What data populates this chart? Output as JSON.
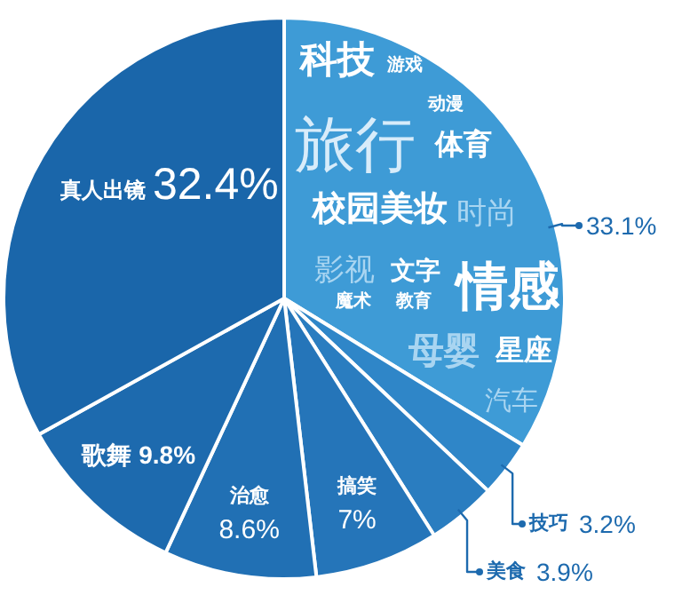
{
  "chart_data": {
    "type": "pie",
    "categories": [
      null,
      "技巧",
      "美食",
      "搞笑",
      "治愈",
      "歌舞",
      "真人出镜"
    ],
    "values": [
      33.1,
      3.2,
      3.9,
      7,
      8.6,
      9.8,
      32.4
    ],
    "value_labels": [
      "33.1%",
      "3.2%",
      "3.9%",
      "7%",
      "8.6%",
      "9.8%",
      "32.4%"
    ],
    "colors": [
      "#3e9bd6",
      "#2f86c8",
      "#2a7dc0",
      "#2575b9",
      "#2170b4",
      "#1d6aae",
      "#1a66aa"
    ],
    "annotations": [
      "科技",
      "游戏",
      "动漫",
      "旅行",
      "体育",
      "校园美妆",
      "时尚",
      "影视",
      "文字",
      "魔术",
      "教育",
      "情感",
      "母婴",
      "星座",
      "汽车"
    ]
  }
}
